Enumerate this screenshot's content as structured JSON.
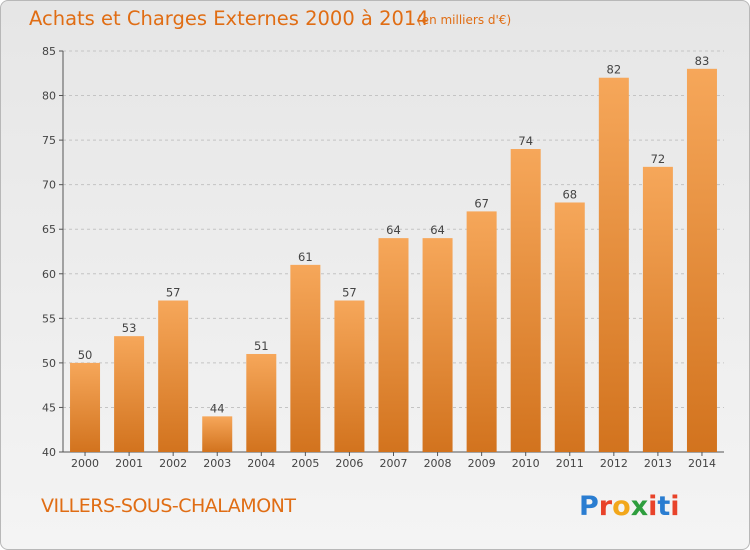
{
  "header": {
    "title": "Achats et Charges Externes 2000 à 2014",
    "subtitle": "(en milliers d'€)"
  },
  "footer": {
    "commune": "VILLERS-SOUS-CHALAMONT",
    "logo_text": "Proxiti",
    "logo_colors": [
      "#2a7dd1",
      "#e8432a",
      "#f2a71b",
      "#2e9e3e",
      "#e8432a",
      "#2a7dd1",
      "#e8432a"
    ]
  },
  "chart_data": {
    "type": "bar",
    "title": "Achats et Charges Externes 2000 à 2014",
    "subtitle": "(en milliers d'€)",
    "categories": [
      "2000",
      "2001",
      "2002",
      "2003",
      "2004",
      "2005",
      "2006",
      "2007",
      "2008",
      "2009",
      "2010",
      "2011",
      "2012",
      "2013",
      "2014"
    ],
    "values": [
      50,
      53,
      57,
      44,
      51,
      61,
      57,
      64,
      64,
      67,
      74,
      68,
      82,
      72,
      83
    ],
    "ylim": [
      40,
      85
    ],
    "yticks": [
      40,
      45,
      50,
      55,
      60,
      65,
      70,
      75,
      80,
      85
    ],
    "grid": true,
    "bar_color": "#f29a44",
    "bar_color_dark": "#d2731e"
  }
}
